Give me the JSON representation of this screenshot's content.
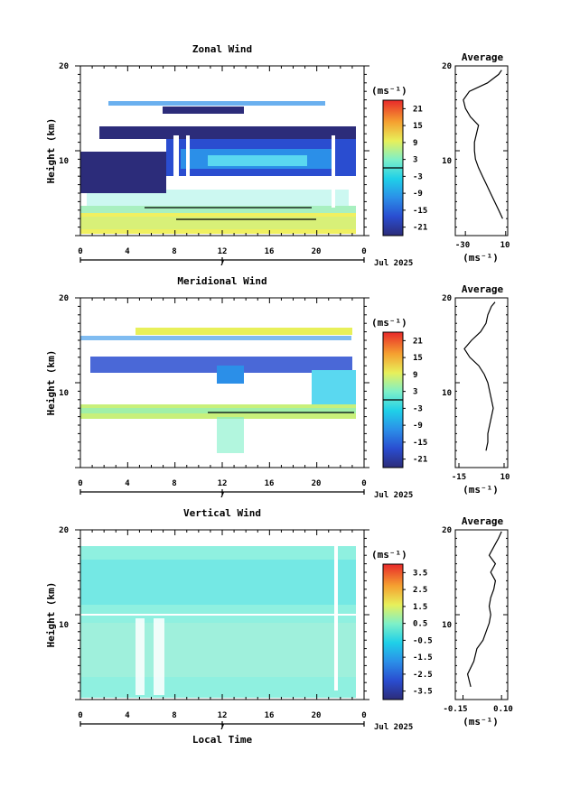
{
  "chart_data": [
    {
      "type": "heatmap",
      "title": "Zonal Wind",
      "ylabel": "Height (km)",
      "ylim": [
        0,
        20
      ],
      "y_ticks": [
        "20",
        "10"
      ],
      "x_ticks": [
        "0",
        "4",
        "8",
        "12",
        "16",
        "20",
        "0"
      ],
      "xlim": [
        0,
        24
      ],
      "date_day": "7",
      "date_label": "Jul 2025",
      "colorbar": {
        "unit_label": "(ms⁻¹)",
        "ticks": [
          "21",
          "15",
          "9",
          "3",
          "-3",
          "-9",
          "-15",
          "-21"
        ],
        "range": [
          -24,
          24
        ],
        "zero_line_at": 0
      },
      "profile": {
        "title": "Average",
        "xlabel": "(ms⁻¹)",
        "x_ticks": [
          "-30",
          "10"
        ],
        "xlim": [
          -40,
          12
        ],
        "y_ticks": [
          "20",
          "10"
        ],
        "heights": [
          2,
          3,
          4,
          5,
          6,
          7,
          8,
          9,
          10,
          11,
          12,
          13,
          14,
          15,
          16,
          17,
          18,
          19,
          19.5
        ],
        "values": [
          7,
          3,
          -1,
          -5,
          -9,
          -13,
          -17,
          -20,
          -21,
          -21,
          -19,
          -17,
          -25,
          -30,
          -32,
          -26,
          -8,
          3,
          6
        ]
      }
    },
    {
      "type": "heatmap",
      "title": "Meridional Wind",
      "ylabel": "Height (km)",
      "ylim": [
        0,
        20
      ],
      "y_ticks": [
        "20",
        "10"
      ],
      "x_ticks": [
        "0",
        "4",
        "8",
        "12",
        "16",
        "20",
        "0"
      ],
      "xlim": [
        0,
        24
      ],
      "date_day": "7",
      "date_label": "Jul 2025",
      "colorbar": {
        "unit_label": "(ms⁻¹)",
        "ticks": [
          "21",
          "15",
          "9",
          "3",
          "-3",
          "-9",
          "-15",
          "-21"
        ],
        "range": [
          -24,
          24
        ],
        "zero_line_at": 0
      },
      "profile": {
        "title": "Average",
        "xlabel": "(ms⁻¹)",
        "x_ticks": [
          "-15",
          "10"
        ],
        "xlim": [
          -17,
          12
        ],
        "y_ticks": [
          "20",
          "10"
        ],
        "heights": [
          2,
          3,
          4,
          5,
          6,
          7,
          8,
          9,
          10,
          11,
          12,
          13,
          14,
          15,
          16,
          17,
          18,
          19,
          19.5
        ],
        "values": [
          0,
          1,
          1,
          2,
          3,
          4,
          3,
          2,
          1,
          -1,
          -4,
          -9,
          -12,
          -8,
          -3,
          0,
          1,
          3,
          5
        ]
      }
    },
    {
      "type": "heatmap",
      "title": "Vertical Wind",
      "ylabel": "Height (km)",
      "xlabel": "Local Time",
      "ylim": [
        0,
        20
      ],
      "y_ticks": [
        "20",
        "10"
      ],
      "x_ticks": [
        "0",
        "4",
        "8",
        "12",
        "16",
        "20",
        "0"
      ],
      "xlim": [
        0,
        24
      ],
      "date_day": "7",
      "date_label": "Jul 2025",
      "colorbar": {
        "unit_label": "(ms⁻¹)",
        "ticks": [
          "3.5",
          "2.5",
          "1.5",
          "0.5",
          "-0.5",
          "-1.5",
          "-2.5",
          "-3.5"
        ],
        "range": [
          -4,
          4
        ]
      },
      "profile": {
        "title": "Average",
        "xlabel": "(ms⁻¹)",
        "x_ticks": [
          "-0.15",
          "0.10"
        ],
        "xlim": [
          -0.2,
          0.14
        ],
        "y_ticks": [
          "20",
          "10"
        ],
        "heights": [
          1.5,
          3,
          4.5,
          6,
          7,
          8,
          9,
          10,
          11,
          12,
          13,
          14,
          15,
          16,
          17,
          18,
          19,
          19.8
        ],
        "values": [
          -0.1,
          -0.12,
          -0.08,
          -0.06,
          -0.02,
          0.0,
          0.02,
          0.03,
          0.02,
          0.03,
          0.05,
          0.06,
          0.03,
          0.06,
          0.02,
          0.05,
          0.08,
          0.1
        ]
      }
    }
  ]
}
